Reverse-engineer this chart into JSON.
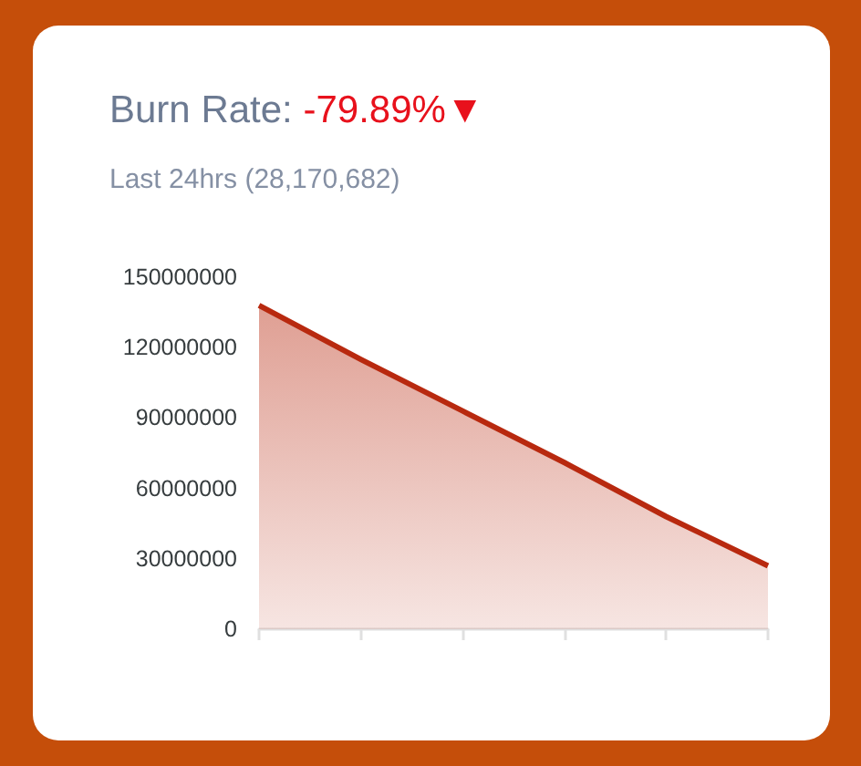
{
  "chart_data": {
    "type": "area",
    "title": "Burn Rate: -79.89%▼",
    "subtitle": "Last 24hrs (28,170,682)",
    "categories": [
      null,
      null,
      null,
      null,
      null,
      null
    ],
    "series": [
      {
        "color": "#b8290f",
        "values": [
          138000000,
          115000000,
          93000000,
          71000000,
          48000000,
          27000000
        ]
      }
    ],
    "ylim": [
      0,
      150000000
    ],
    "yticks": [
      0,
      30000000,
      60000000,
      90000000,
      120000000,
      150000000
    ],
    "tick_labels": "y"
  }
}
